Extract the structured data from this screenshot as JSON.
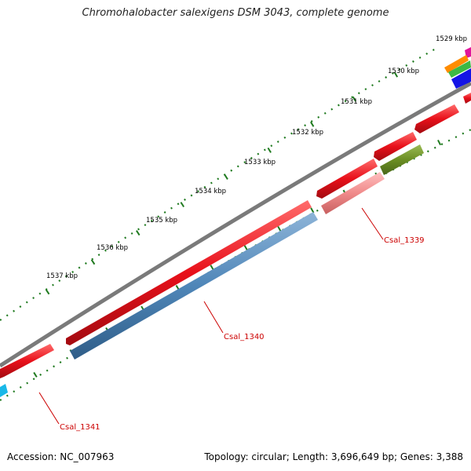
{
  "header": {
    "title": "Chromohalobacter salexigens DSM 3043, complete genome"
  },
  "footer": {
    "accession": "Accession: NC_007963",
    "summary": "Topology: circular; Length: 3,696,649 bp; Genes: 3,388"
  },
  "ruler": {
    "ticks": [
      {
        "label": "1529 kbp"
      },
      {
        "label": "1530 kbp"
      },
      {
        "label": "1531 kbp"
      },
      {
        "label": "1532 kbp"
      },
      {
        "label": "1533 kbp"
      },
      {
        "label": "1534 kbp"
      },
      {
        "label": "1535 kbp"
      },
      {
        "label": "1536 kbp"
      },
      {
        "label": "1537 kbp"
      }
    ]
  },
  "genes": [
    {
      "label": "Csal_1339"
    },
    {
      "label": "Csal_1340"
    },
    {
      "label": "Csal_1341"
    }
  ],
  "colors": {
    "cds_red": "#e8101a",
    "csal1339": "#f08a8a",
    "csal1340": "#4f86b8",
    "olive": "#6b8e23",
    "backbone": "#7a7a7a",
    "ticks": "#1f7a1f",
    "cyan": "#19b8e8",
    "orange": "#ff8c00",
    "magenta": "#e0149b",
    "green": "#3cb843",
    "blue": "#1414e6"
  }
}
